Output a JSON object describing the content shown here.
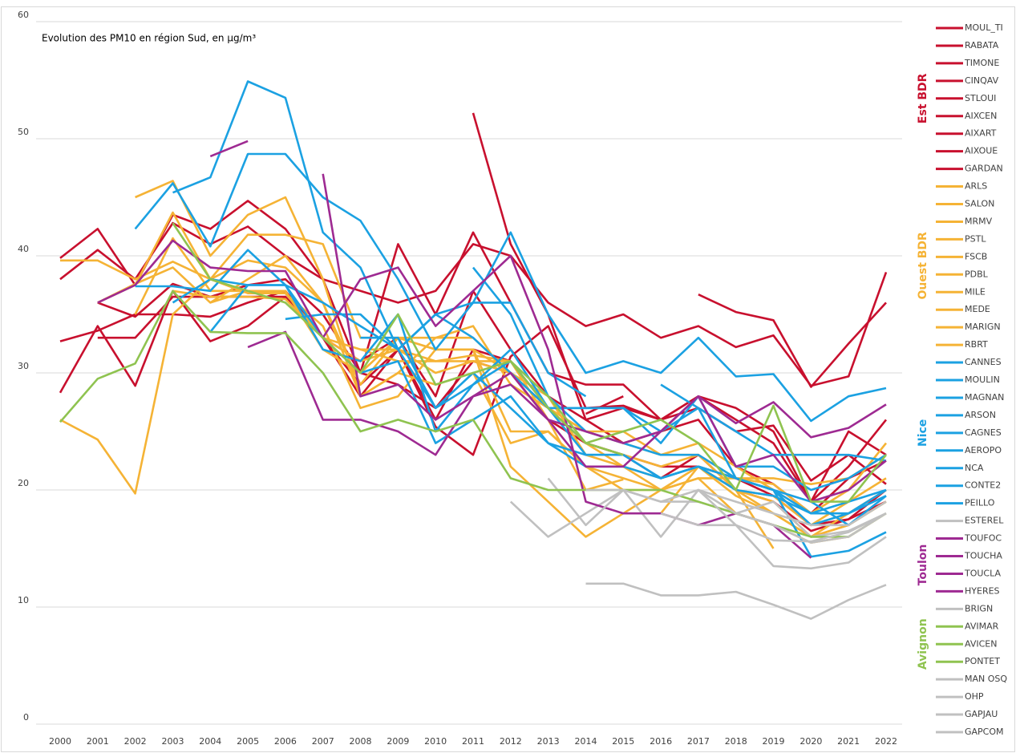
{
  "chart_data": {
    "type": "line",
    "title": "Evolution des PM10 en région Sud, en µg/m³",
    "categories": [
      "2000",
      "2001",
      "2002",
      "2003",
      "2004",
      "2005",
      "2006",
      "2007",
      "2008",
      "2009",
      "2010",
      "2011",
      "2012",
      "2013",
      "2014",
      "2015",
      "2016",
      "2017",
      "2018",
      "2019",
      "2020",
      "2021",
      "2022"
    ],
    "ylim": [
      0,
      60
    ],
    "yticks": [
      0,
      10,
      20,
      30,
      40,
      50,
      60
    ],
    "grid": true,
    "legend_groups": [
      {
        "label": "Est BDR",
        "color": "#c8102e"
      },
      {
        "label": "Ouest BDR",
        "color": "#f5b335"
      },
      {
        "label": "Nice",
        "color": "#1ba1e2"
      },
      {
        "label": "Toulon",
        "color": "#9e2a92"
      },
      {
        "label": "Avignon",
        "color": "#8fc350"
      }
    ],
    "series": [
      {
        "name": "MOUL_TI",
        "color": "#c8102e",
        "values": [
          null,
          null,
          null,
          null,
          null,
          null,
          null,
          null,
          null,
          null,
          null,
          null,
          null,
          null,
          null,
          null,
          null,
          36.7,
          35.2,
          34.5,
          28.8,
          32.5,
          36
        ]
      },
      {
        "name": "RABATA",
        "color": "#c8102e",
        "values": [
          39.8,
          42.3,
          37.5,
          43.5,
          42.3,
          44.7,
          42.3,
          38,
          37,
          36,
          37,
          41,
          40,
          36,
          34,
          35,
          33,
          34,
          32.2,
          33.2,
          28.9,
          29.7,
          38.6
        ]
      },
      {
        "name": "TIMONE",
        "color": "#c8102e",
        "values": [
          38,
          40.5,
          38,
          42.8,
          41,
          42.5,
          40,
          38,
          30,
          41,
          35,
          42,
          36,
          30,
          29,
          29,
          26,
          28,
          27,
          25,
          19,
          25,
          23
        ]
      },
      {
        "name": "CINQAV",
        "color": "#c8102e",
        "values": [
          28.3,
          34,
          28.9,
          37,
          32.7,
          34,
          36.5,
          33,
          28,
          32,
          25.4,
          23,
          31.4,
          34,
          27,
          27.2,
          26,
          28,
          26,
          24,
          19,
          22,
          26
        ]
      },
      {
        "name": "STLOUI",
        "color": "#c8102e",
        "values": [
          null,
          null,
          null,
          null,
          null,
          null,
          null,
          null,
          null,
          null,
          null,
          52.2,
          41,
          35,
          26,
          27,
          26,
          27,
          25,
          25.5,
          20.8,
          23,
          20.5
        ]
      },
      {
        "name": "AIXCEN",
        "color": "#c8102e",
        "values": [
          32.7,
          33.6,
          35,
          35,
          34.8,
          36,
          37,
          33,
          31,
          33,
          28,
          37,
          32,
          28,
          26,
          24,
          25,
          26,
          22,
          20.5,
          18,
          21,
          22.5
        ]
      },
      {
        "name": "AIXART",
        "color": "#c8102e",
        "values": [
          null,
          36,
          34.8,
          37.6,
          36.5,
          37.5,
          38,
          35,
          30,
          29,
          27,
          31,
          30,
          26,
          24,
          23,
          21,
          23,
          20,
          19,
          16.5,
          17.5,
          20
        ]
      },
      {
        "name": "AIXOUE",
        "color": "#c8102e",
        "values": [
          null,
          null,
          null,
          null,
          null,
          null,
          null,
          null,
          null,
          null,
          null,
          null,
          null,
          null,
          26.5,
          28,
          null,
          null,
          null,
          null,
          null,
          null,
          null
        ]
      },
      {
        "name": "GARDAN",
        "color": "#c8102e",
        "values": [
          null,
          33,
          33,
          36.5,
          36.5,
          36.5,
          36.5,
          33,
          29,
          32,
          26,
          32,
          31,
          27,
          24,
          23,
          22,
          22,
          21,
          19.5,
          17,
          17.5,
          19
        ]
      },
      {
        "name": "ARLS",
        "color": "#f5b335",
        "values": [
          26,
          24.3,
          19.7,
          35,
          38,
          39.6,
          39,
          36,
          28,
          30,
          29,
          30,
          24,
          25,
          22,
          21,
          20,
          21,
          18,
          17,
          15.5,
          16,
          18
        ]
      },
      {
        "name": "SALON",
        "color": "#f5b335",
        "values": [
          39.6,
          39.6,
          38,
          39.5,
          38,
          36.8,
          36.8,
          33,
          31,
          32,
          31,
          31.5,
          31,
          27,
          24,
          22,
          21,
          22,
          19.5,
          18,
          16,
          17,
          19
        ]
      },
      {
        "name": "MRMV",
        "color": "#f5b335",
        "values": [
          null,
          null,
          45,
          46.4,
          40,
          43.5,
          45,
          38,
          28,
          30,
          33,
          34,
          29,
          27,
          25,
          25,
          23,
          24,
          22,
          20,
          17,
          19,
          21
        ]
      },
      {
        "name": "PSTL",
        "color": "#f5b335",
        "values": [
          null,
          36,
          37.5,
          43.7,
          38,
          41.8,
          41.8,
          41,
          33,
          33,
          32,
          32,
          30,
          27,
          24,
          23,
          22,
          23,
          20,
          19.5,
          17,
          18,
          20
        ]
      },
      {
        "name": "FSCB",
        "color": "#f5b335",
        "values": [
          null,
          36,
          37.6,
          39,
          36,
          37,
          36.8,
          34,
          27,
          28,
          32,
          32,
          22,
          19,
          16,
          18,
          20,
          22,
          20,
          18,
          16,
          18,
          20
        ]
      },
      {
        "name": "PDBL",
        "color": "#f5b335",
        "values": [
          null,
          null,
          35,
          41.5,
          37,
          37,
          37,
          32,
          30,
          33,
          33,
          33,
          30,
          28,
          23,
          22,
          20,
          22,
          20,
          19,
          16,
          17,
          19
        ]
      },
      {
        "name": "MILE",
        "color": "#f5b335",
        "values": [
          null,
          null,
          null,
          37,
          36.5,
          36.5,
          36.3,
          33,
          32,
          32,
          30,
          31,
          31,
          26,
          20,
          20.9,
          null,
          null,
          null,
          null,
          null,
          null,
          null
        ]
      },
      {
        "name": "MEDE",
        "color": "#f5b335",
        "values": [
          null,
          null,
          null,
          null,
          36,
          38,
          40,
          36,
          29,
          33,
          32,
          32,
          25,
          25,
          22,
          20,
          20,
          21,
          21,
          20.5,
          18,
          20,
          24
        ]
      },
      {
        "name": "MARIGN",
        "color": "#f5b335",
        "values": [
          null,
          null,
          null,
          null,
          null,
          null,
          null,
          null,
          32,
          31,
          31,
          31,
          30,
          27,
          25,
          24,
          23,
          23,
          21,
          21,
          20.5,
          21,
          23
        ]
      },
      {
        "name": "RBRT",
        "color": "#f5b335",
        "values": [
          null,
          null,
          null,
          null,
          null,
          null,
          null,
          null,
          null,
          null,
          null,
          null,
          null,
          null,
          null,
          null,
          18,
          22,
          20,
          15,
          null,
          null,
          null
        ]
      },
      {
        "name": "CANNES",
        "color": "#1ba1e2",
        "values": [
          null,
          null,
          42.3,
          46.2,
          40.8,
          48.7,
          48.7,
          45,
          43,
          38,
          32,
          36,
          42,
          35,
          30,
          31,
          30,
          33,
          29.7,
          29.9,
          25.9,
          28,
          28.7
        ]
      },
      {
        "name": "MOULIN",
        "color": "#1ba1e2",
        "values": [
          null,
          null,
          null,
          45.4,
          46.7,
          54.9,
          53.5,
          42,
          39,
          32,
          35,
          36,
          36,
          30,
          28,
          null,
          null,
          null,
          null,
          null,
          null,
          null,
          null
        ]
      },
      {
        "name": "MAGNAN",
        "color": "#1ba1e2",
        "values": [
          null,
          null,
          37.4,
          37.4,
          37,
          40.5,
          37.5,
          36,
          34,
          32,
          35,
          33,
          30,
          27,
          27,
          27,
          25,
          27,
          25,
          23,
          23,
          23,
          22.5
        ]
      },
      {
        "name": "ARSON",
        "color": "#1ba1e2",
        "values": [
          null,
          null,
          null,
          36,
          38,
          37.5,
          37.5,
          32,
          31,
          35,
          25,
          29,
          32,
          27,
          23,
          23,
          21,
          22,
          21,
          20,
          18,
          19,
          20
        ]
      },
      {
        "name": "CAGNES",
        "color": "#1ba1e2",
        "values": [
          null,
          null,
          null,
          null,
          33.5,
          37.5,
          37.5,
          33,
          30,
          31,
          24,
          26,
          28,
          24,
          22,
          22,
          21,
          22,
          20,
          19.5,
          18,
          18,
          19.5
        ]
      },
      {
        "name": "AEROPO",
        "color": "#1ba1e2",
        "values": [
          null,
          null,
          null,
          null,
          null,
          null,
          34.6,
          35,
          35,
          32,
          27,
          29,
          31,
          27,
          27,
          27,
          24,
          28,
          22,
          22,
          20,
          21,
          23
        ]
      },
      {
        "name": "NCA",
        "color": "#1ba1e2",
        "values": [
          null,
          null,
          null,
          null,
          null,
          null,
          null,
          null,
          33,
          33,
          27,
          30,
          27,
          24,
          23,
          23,
          21,
          22,
          21,
          20,
          17,
          18,
          20
        ]
      },
      {
        "name": "CONTE2",
        "color": "#1ba1e2",
        "values": [
          null,
          null,
          null,
          null,
          null,
          null,
          null,
          null,
          null,
          null,
          null,
          39,
          35,
          28,
          25,
          24,
          23,
          23,
          21,
          20,
          19,
          17,
          19.5
        ]
      },
      {
        "name": "PEILLO",
        "color": "#1ba1e2",
        "values": [
          null,
          null,
          null,
          null,
          null,
          null,
          null,
          null,
          null,
          null,
          null,
          null,
          null,
          null,
          null,
          null,
          29,
          27,
          21,
          20,
          14.3,
          14.8,
          16.4
        ]
      },
      {
        "name": "ESTEREL",
        "color": "#c0c0c0",
        "values": [
          null,
          null,
          null,
          null,
          null,
          null,
          null,
          null,
          null,
          null,
          null,
          null,
          19,
          16,
          18,
          20,
          16,
          20,
          19,
          18,
          17,
          17,
          19
        ]
      },
      {
        "name": "TOUFOC",
        "color": "#9e2a92",
        "values": [
          null,
          null,
          null,
          null,
          48.5,
          49.8,
          null,
          null,
          null,
          null,
          null,
          null,
          null,
          null,
          null,
          null,
          null,
          null,
          null,
          null,
          null,
          null,
          null
        ]
      },
      {
        "name": "TOUCHA",
        "color": "#9e2a92",
        "values": [
          null,
          36,
          37.5,
          41.3,
          39,
          38.7,
          38.7,
          33,
          38,
          39,
          34,
          37,
          40,
          32,
          19,
          18,
          18,
          17,
          18,
          17,
          14.2,
          null,
          null
        ]
      },
      {
        "name": "TOUCLA",
        "color": "#9e2a92",
        "values": [
          null,
          null,
          null,
          null,
          null,
          32.2,
          33.5,
          26,
          26,
          25,
          23,
          28,
          29,
          26,
          22,
          22,
          25,
          28,
          25.7,
          27.5,
          24.5,
          25.3,
          27.3
        ]
      },
      {
        "name": "HYERES",
        "color": "#9e2a92",
        "values": [
          null,
          null,
          null,
          null,
          null,
          null,
          null,
          47,
          28,
          29,
          26,
          28,
          30,
          26,
          25,
          24,
          25,
          28,
          22,
          23,
          19,
          20,
          22.5
        ]
      },
      {
        "name": "BRIGN",
        "color": "#c0c0c0",
        "values": [
          null,
          null,
          null,
          null,
          null,
          null,
          null,
          null,
          null,
          null,
          null,
          null,
          null,
          21,
          17,
          20,
          19,
          19,
          18,
          19,
          16,
          16.5,
          18
        ]
      },
      {
        "name": "AVIMAR",
        "color": "#8fc350",
        "values": [
          25.8,
          29.5,
          30.8,
          37,
          33.5,
          33.4,
          33.4,
          30,
          25,
          26,
          25,
          26,
          21,
          20,
          20,
          20,
          20,
          19,
          18,
          17,
          16,
          16,
          18
        ]
      },
      {
        "name": "AVICEN",
        "color": "#8fc350",
        "values": [
          null,
          null,
          null,
          42.8,
          38,
          37,
          36,
          33,
          30,
          35,
          29,
          30,
          31,
          27,
          24,
          23,
          null,
          null,
          null,
          null,
          null,
          null,
          null
        ]
      },
      {
        "name": "PONTET",
        "color": "#8fc350",
        "values": [
          null,
          null,
          null,
          null,
          null,
          null,
          null,
          null,
          null,
          null,
          null,
          null,
          31,
          28,
          24,
          25,
          26,
          24,
          20,
          27.2,
          19,
          19,
          23
        ]
      },
      {
        "name": "MAN OSQ",
        "color": "#c0c0c0",
        "values": [
          null,
          null,
          null,
          null,
          null,
          null,
          null,
          null,
          null,
          null,
          null,
          null,
          null,
          null,
          20,
          20,
          19,
          20,
          18,
          17,
          15.5,
          16,
          18
        ]
      },
      {
        "name": "OHP",
        "color": "#c0c0c0",
        "values": [
          null,
          null,
          null,
          null,
          null,
          null,
          null,
          null,
          null,
          null,
          null,
          null,
          null,
          null,
          12,
          12,
          11,
          11,
          11.3,
          10.2,
          9,
          10.6,
          11.9
        ]
      },
      {
        "name": "GAPJAU",
        "color": "#c0c0c0",
        "values": [
          null,
          null,
          null,
          null,
          null,
          null,
          null,
          null,
          null,
          null,
          null,
          null,
          null,
          null,
          null,
          null,
          null,
          20,
          17,
          13.5,
          13.3,
          13.8,
          16
        ]
      },
      {
        "name": "GAPCOM",
        "color": "#c0c0c0",
        "values": [
          null,
          null,
          null,
          null,
          null,
          null,
          null,
          null,
          null,
          null,
          null,
          null,
          null,
          null,
          null,
          null,
          18,
          17,
          17,
          15.7,
          15.6,
          16.4,
          18
        ]
      }
    ]
  }
}
